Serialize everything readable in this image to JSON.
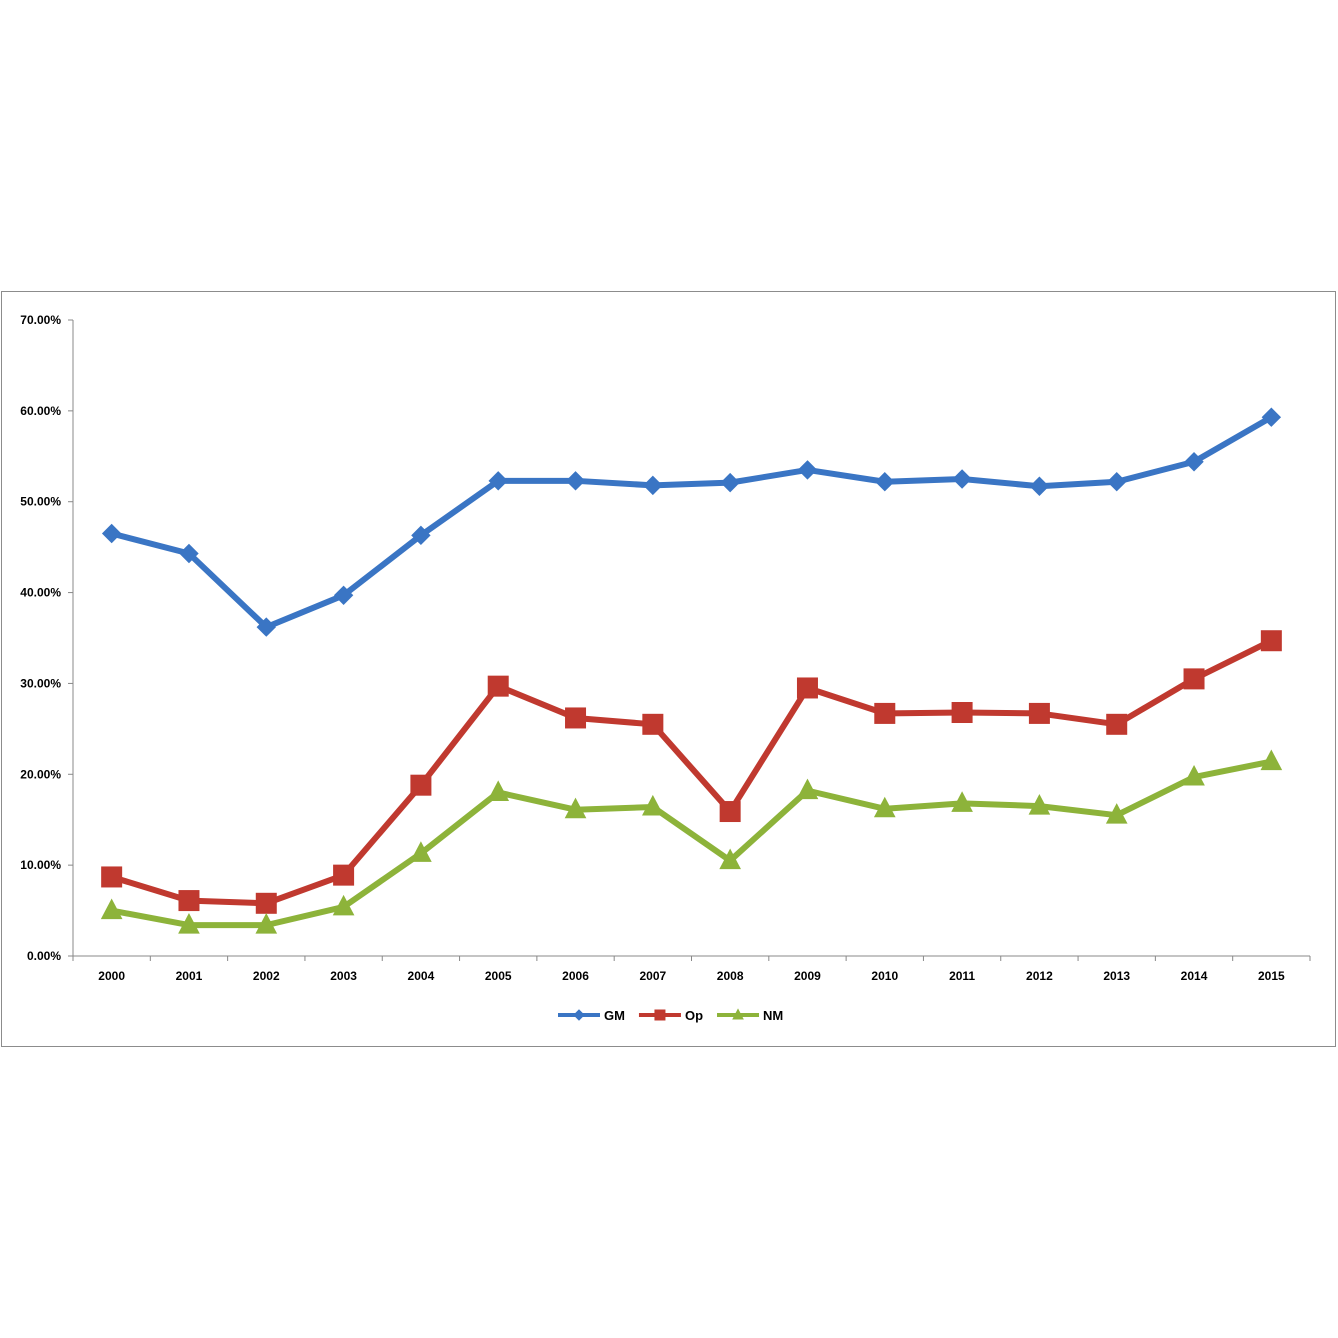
{
  "chart_data": {
    "type": "line",
    "title": "",
    "xlabel": "",
    "ylabel": "",
    "ylim": [
      0,
      0.7
    ],
    "y_ticks": [
      {
        "value": 0.0,
        "label": "0.00%"
      },
      {
        "value": 0.1,
        "label": "10.00%"
      },
      {
        "value": 0.2,
        "label": "20.00%"
      },
      {
        "value": 0.3,
        "label": "30.00%"
      },
      {
        "value": 0.4,
        "label": "40.00%"
      },
      {
        "value": 0.5,
        "label": "50.00%"
      },
      {
        "value": 0.6,
        "label": "60.00%"
      },
      {
        "value": 0.7,
        "label": "70.00%"
      }
    ],
    "categories": [
      "2000",
      "2001",
      "2002",
      "2003",
      "2004",
      "2005",
      "2006",
      "2007",
      "2008",
      "2009",
      "2010",
      "2011",
      "2012",
      "2013",
      "2014",
      "2015"
    ],
    "grid": false,
    "legend_position": "bottom",
    "series": [
      {
        "name": "GM",
        "color": "#3a75c4",
        "marker": "diamond",
        "values": [
          0.465,
          0.443,
          0.362,
          0.397,
          0.463,
          0.523,
          0.523,
          0.518,
          0.521,
          0.535,
          0.522,
          0.525,
          0.517,
          0.522,
          0.544,
          0.593
        ]
      },
      {
        "name": "Op",
        "color": "#c0392f",
        "marker": "square",
        "values": [
          0.087,
          0.061,
          0.058,
          0.089,
          0.188,
          0.297,
          0.262,
          0.255,
          0.159,
          0.295,
          0.267,
          0.268,
          0.267,
          0.255,
          0.305,
          0.347
        ]
      },
      {
        "name": "NM",
        "color": "#8db33a",
        "marker": "triangle",
        "values": [
          0.05,
          0.034,
          0.034,
          0.054,
          0.113,
          0.18,
          0.161,
          0.164,
          0.105,
          0.182,
          0.162,
          0.168,
          0.165,
          0.155,
          0.197,
          0.214
        ]
      }
    ]
  }
}
